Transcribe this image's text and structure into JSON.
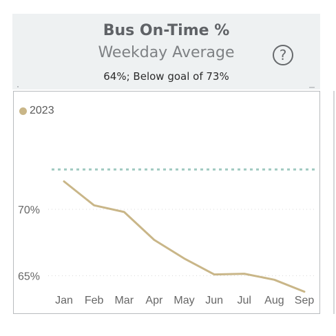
{
  "header": {
    "title": "Bus On-Time %",
    "subtitle": "Weekday Average",
    "status": "64%; Below goal of 73%",
    "help_glyph": "?",
    "help_icon": "question-circle-icon"
  },
  "colors": {
    "series": "#c9b688",
    "goal": "#9fc9c0",
    "header_bg": "#eef1f2",
    "grid": "#d9d9d9"
  },
  "chart_data": {
    "type": "line",
    "title": "Bus On-Time %",
    "subtitle": "Weekday Average",
    "categories": [
      "Jan",
      "Feb",
      "Mar",
      "Apr",
      "May",
      "Jun",
      "Jul",
      "Aug",
      "Sep"
    ],
    "series": [
      {
        "name": "2023",
        "values": [
          72.1,
          70.3,
          69.8,
          67.7,
          66.3,
          65.1,
          65.15,
          64.7,
          63.8
        ]
      }
    ],
    "goal": {
      "value": 73,
      "style": "dashed"
    },
    "y_ticks": [
      {
        "value": 70,
        "label": "70%"
      },
      {
        "value": 65,
        "label": "65%"
      }
    ],
    "ylim": [
      62.9,
      75.6
    ],
    "grid": "horizontal-dotted",
    "legend": "top-left"
  }
}
